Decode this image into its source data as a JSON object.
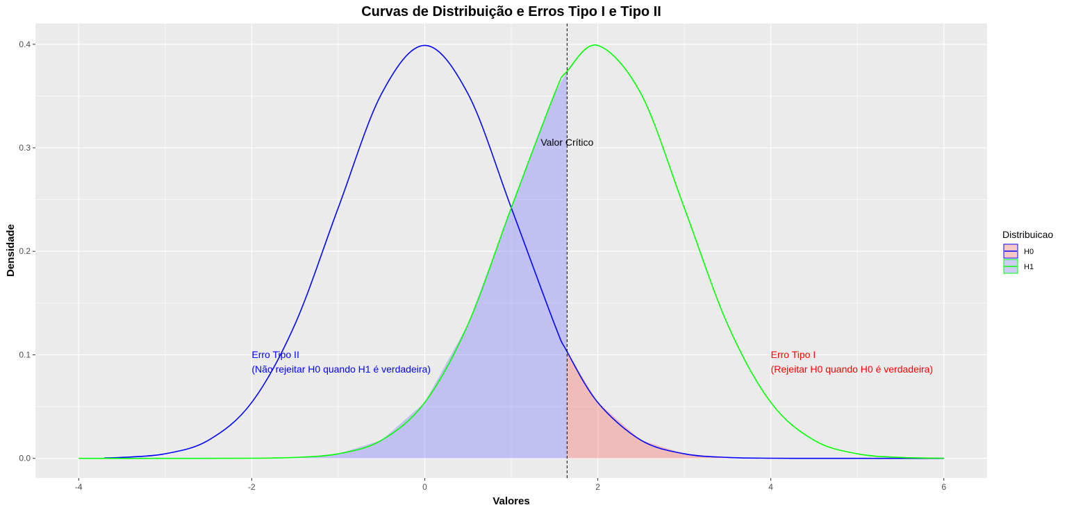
{
  "chart_data": {
    "type": "area",
    "title": "Curvas de Distribuição e Erros Tipo I e Tipo II",
    "xlabel": "Valores",
    "ylabel": "Densidade",
    "xlim": [
      -4.5,
      6.5
    ],
    "ylim": [
      -0.019,
      0.42
    ],
    "x_ticks": [
      -4,
      -2,
      0,
      2,
      4,
      6
    ],
    "x_tick_labels": [
      "-4",
      "-2",
      "0",
      "2",
      "4",
      "6"
    ],
    "y_ticks": [
      0.0,
      0.1,
      0.2,
      0.3,
      0.4
    ],
    "y_tick_labels": [
      "0.0",
      "0.1",
      "0.2",
      "0.3",
      "0.4"
    ],
    "grid": true,
    "legend_position": "right",
    "legend_title": "Distribuicao",
    "series": [
      {
        "name": "H0",
        "color": "#0000ff",
        "fill": "#f8766d",
        "x": [
          -3.7,
          -3.5,
          -3.0,
          -2.5,
          -2.0,
          -1.5,
          -1.0,
          -0.5,
          0.0,
          0.5,
          1.0,
          1.5,
          1.645,
          2.0,
          2.5,
          3.0,
          3.5,
          4.0,
          4.5,
          5.0,
          5.5,
          6.0
        ],
        "y": [
          0.0004,
          0.0009,
          0.0044,
          0.0175,
          0.054,
          0.1295,
          0.242,
          0.3521,
          0.3989,
          0.3521,
          0.242,
          0.1295,
          0.1031,
          0.054,
          0.0175,
          0.0044,
          0.0009,
          0.0001,
          0.0,
          0.0,
          0.0,
          0.0
        ]
      },
      {
        "name": "H1",
        "color": "#00ff00",
        "fill": "#7f7fff",
        "x": [
          -4.0,
          -3.0,
          -2.0,
          -1.5,
          -1.0,
          -0.5,
          0.0,
          0.5,
          1.0,
          1.5,
          1.645,
          2.0,
          2.5,
          3.0,
          3.5,
          4.0,
          4.5,
          5.0,
          5.5,
          6.0
        ],
        "y": [
          0.0,
          0.0,
          0.0001,
          0.0009,
          0.0044,
          0.0175,
          0.054,
          0.1295,
          0.242,
          0.3521,
          0.3739,
          0.3989,
          0.3521,
          0.242,
          0.1295,
          0.054,
          0.0175,
          0.0044,
          0.0009,
          0.0001
        ]
      }
    ],
    "critical_value": 1.645,
    "critical_label": "Valor Crítico",
    "annotations": [
      {
        "lines": [
          "Erro Tipo II",
          "(Não rejeitar H0 quando H1 é verdadeira)"
        ],
        "x": -2.0,
        "y": 0.097,
        "color": "#0000ff"
      },
      {
        "lines": [
          "Erro Tipo I",
          "(Rejeitar H0 quando H0 é verdadeira)"
        ],
        "x": 4.0,
        "y": 0.097,
        "color": "#ff0000"
      }
    ]
  }
}
